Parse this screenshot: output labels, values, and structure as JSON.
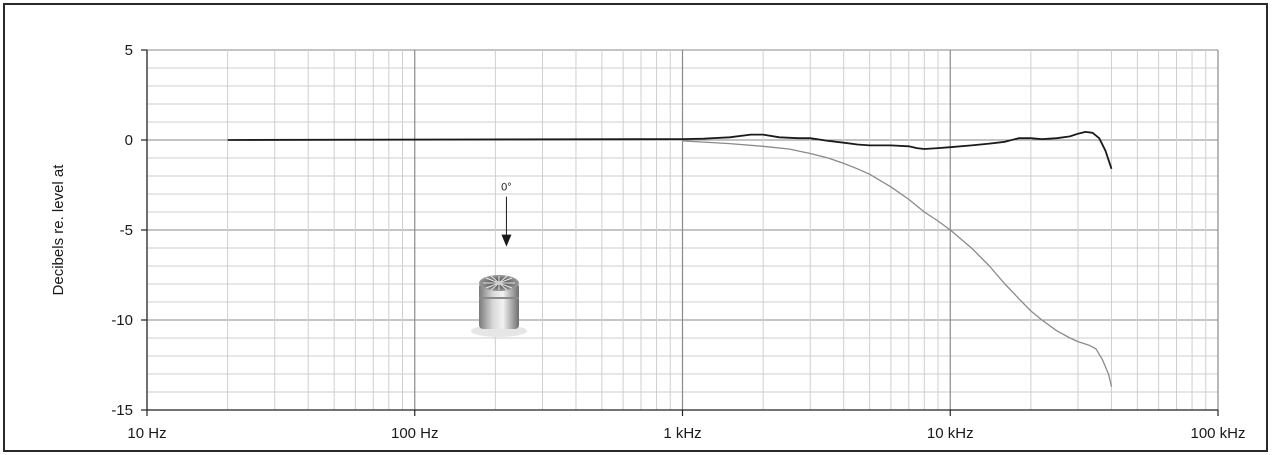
{
  "chart_data": {
    "type": "line",
    "title": "",
    "xlabel": "",
    "ylabel": "Decibels re. level at",
    "xscale": "log",
    "xlim": [
      10,
      100000
    ],
    "ylim": [
      -15,
      5
    ],
    "grid": true,
    "x_ticks": [
      {
        "value": 10,
        "label": "10 Hz"
      },
      {
        "value": 100,
        "label": "100 Hz"
      },
      {
        "value": 1000,
        "label": "1 kHz"
      },
      {
        "value": 10000,
        "label": "10 kHz"
      },
      {
        "value": 100000,
        "label": "100 kHz"
      }
    ],
    "y_ticks": [
      {
        "value": 5,
        "label": "5"
      },
      {
        "value": 0,
        "label": "0"
      },
      {
        "value": -5,
        "label": "-5"
      },
      {
        "value": -10,
        "label": "-10"
      },
      {
        "value": -15,
        "label": "-15"
      }
    ],
    "series": [
      {
        "color": "#1a1a1a",
        "points": [
          [
            20,
            0
          ],
          [
            1000,
            0.05
          ],
          [
            1200,
            0.08
          ],
          [
            1500,
            0.15
          ],
          [
            1800,
            0.3
          ],
          [
            2000,
            0.3
          ],
          [
            2300,
            0.15
          ],
          [
            2700,
            0.1
          ],
          [
            3000,
            0.1
          ],
          [
            3500,
            -0.05
          ],
          [
            4000,
            -0.15
          ],
          [
            4500,
            -0.25
          ],
          [
            5000,
            -0.3
          ],
          [
            6000,
            -0.3
          ],
          [
            7000,
            -0.35
          ],
          [
            7500,
            -0.45
          ],
          [
            8000,
            -0.5
          ],
          [
            9000,
            -0.45
          ],
          [
            10000,
            -0.4
          ],
          [
            12000,
            -0.3
          ],
          [
            14000,
            -0.2
          ],
          [
            16000,
            -0.1
          ],
          [
            18000,
            0.1
          ],
          [
            20000,
            0.1
          ],
          [
            22000,
            0.05
          ],
          [
            25000,
            0.1
          ],
          [
            28000,
            0.2
          ],
          [
            30000,
            0.35
          ],
          [
            32000,
            0.45
          ],
          [
            34000,
            0.4
          ],
          [
            36000,
            0.1
          ],
          [
            38000,
            -0.6
          ],
          [
            40000,
            -1.6
          ]
        ]
      },
      {
        "color": "#8a8a8a",
        "points": [
          [
            1000,
            -0.05
          ],
          [
            1500,
            -0.2
          ],
          [
            2000,
            -0.35
          ],
          [
            2500,
            -0.5
          ],
          [
            3000,
            -0.75
          ],
          [
            3500,
            -1.0
          ],
          [
            4000,
            -1.3
          ],
          [
            4500,
            -1.6
          ],
          [
            5000,
            -1.9
          ],
          [
            6000,
            -2.6
          ],
          [
            7000,
            -3.3
          ],
          [
            8000,
            -4.0
          ],
          [
            9000,
            -4.5
          ],
          [
            10000,
            -5.0
          ],
          [
            12000,
            -6.0
          ],
          [
            14000,
            -7.0
          ],
          [
            16000,
            -8.0
          ],
          [
            18000,
            -8.8
          ],
          [
            20000,
            -9.5
          ],
          [
            22000,
            -10.0
          ],
          [
            25000,
            -10.6
          ],
          [
            28000,
            -11.0
          ],
          [
            30000,
            -11.2
          ],
          [
            33000,
            -11.4
          ],
          [
            35000,
            -11.6
          ],
          [
            37000,
            -12.2
          ],
          [
            39000,
            -13.0
          ],
          [
            40000,
            -13.7
          ]
        ]
      }
    ],
    "annotations": [
      {
        "text": "0°",
        "x": 220,
        "y": -3.7
      }
    ]
  }
}
